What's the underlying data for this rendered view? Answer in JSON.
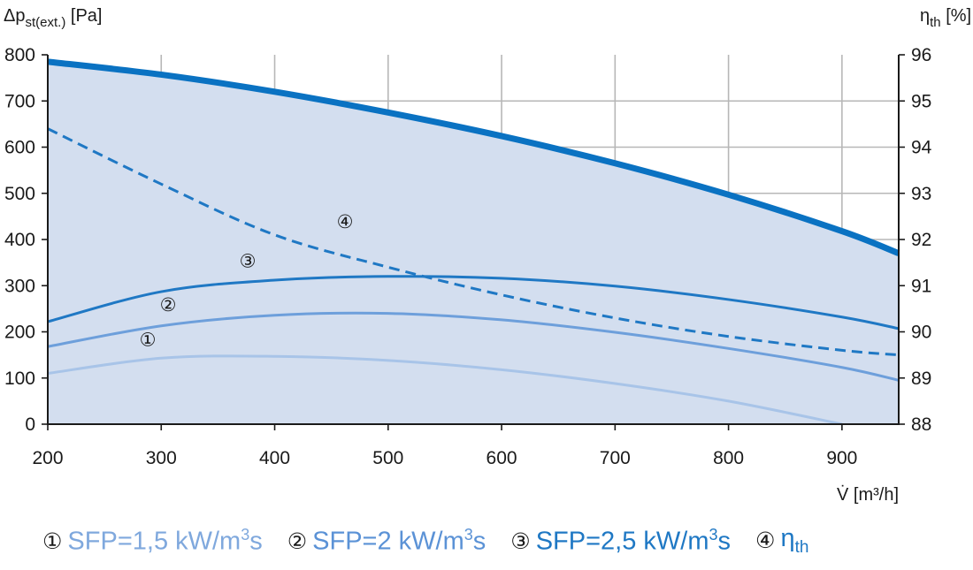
{
  "chart_data": {
    "type": "line",
    "x_label": "V̇ [m³/h]",
    "y_label_left": {
      "main": "Δp",
      "sub": "st(ext.)",
      "unit": "[Pa]"
    },
    "y_label_right": {
      "main": "η",
      "sub": "th",
      "unit": "[%]"
    },
    "x_range": [
      200,
      950
    ],
    "y_left_range": [
      0,
      800
    ],
    "y_right_range": [
      88,
      96
    ],
    "x_ticks": [
      "200",
      "300",
      "400",
      "500",
      "600",
      "700",
      "800",
      "900"
    ],
    "y_left_ticks": [
      "0",
      "100",
      "200",
      "300",
      "400",
      "500",
      "600",
      "700",
      "800"
    ],
    "y_right_ticks": [
      "88",
      "89",
      "90",
      "91",
      "92",
      "93",
      "94",
      "95",
      "96"
    ],
    "grid": true,
    "envelope": {
      "axis": "left",
      "color": "#0a72c2",
      "fill": "#d3deef",
      "x": [
        200,
        300,
        400,
        500,
        600,
        700,
        800,
        900,
        950
      ],
      "y": [
        785,
        757,
        720,
        675,
        624,
        565,
        497,
        418,
        370
      ]
    },
    "series": [
      {
        "marker": "①",
        "axis": "left",
        "color": "#a8c4e8",
        "x": [
          200,
          300,
          400,
          500,
          600,
          700,
          800,
          900
        ],
        "y": [
          110,
          143,
          147,
          138,
          118,
          88,
          50,
          0
        ]
      },
      {
        "marker": "②",
        "axis": "left",
        "color": "#6d9fdb",
        "x": [
          200,
          300,
          400,
          500,
          600,
          700,
          800,
          900,
          950
        ],
        "y": [
          168,
          213,
          236,
          240,
          226,
          199,
          164,
          123,
          95
        ]
      },
      {
        "marker": "③",
        "axis": "left",
        "color": "#1f78c4",
        "x": [
          200,
          300,
          400,
          500,
          600,
          700,
          800,
          900,
          950
        ],
        "y": [
          222,
          287,
          312,
          320,
          316,
          299,
          270,
          232,
          207
        ]
      },
      {
        "marker": "④",
        "axis": "right",
        "color": "#1f78c4",
        "dashed": true,
        "x": [
          200,
          300,
          400,
          500,
          600,
          700,
          800,
          900,
          950
        ],
        "y": [
          94.4,
          93.2,
          92.1,
          91.4,
          90.8,
          90.3,
          89.9,
          89.6,
          89.5
        ]
      }
    ],
    "legend": [
      {
        "num": "①",
        "text": "SFP=1,5 kW/m",
        "sup": "3",
        "tail": "s",
        "sub": "",
        "color": "#7fa8dd"
      },
      {
        "num": "②",
        "text": "SFP=2 kW/m",
        "sup": "3",
        "tail": "s",
        "sub": "",
        "color": "#5b92d6"
      },
      {
        "num": "③",
        "text": "SFP=2,5 kW/m",
        "sup": "3",
        "tail": "s",
        "sub": "",
        "color": "#1f78c4"
      },
      {
        "num": "④",
        "text": "η",
        "sup": "",
        "tail": "",
        "sub": "th",
        "color": "#1f78c4"
      }
    ]
  }
}
